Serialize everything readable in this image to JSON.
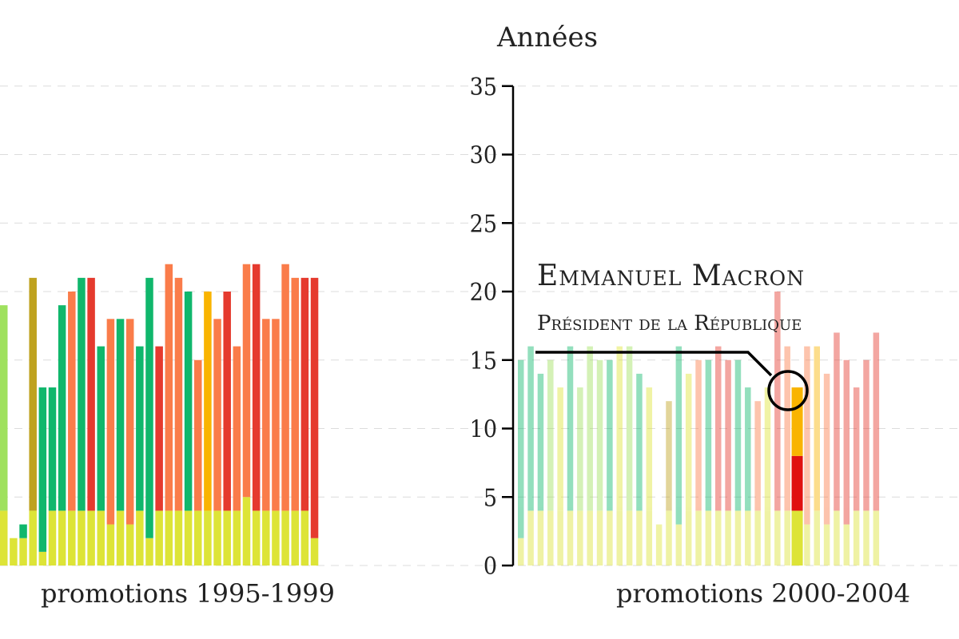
{
  "chart_data": {
    "type": "stacked-bar",
    "ylabel": "Années",
    "ylim": [
      0,
      35
    ],
    "yticks": [
      0,
      5,
      10,
      15,
      20,
      25,
      30,
      35
    ],
    "grid": true,
    "colors": {
      "yellow": "#dde437",
      "lightgreen": "#9fe15e",
      "green": "#10b76c",
      "olive": "#bfa21f",
      "orange": "#f9b400",
      "salmon": "#fa7c4a",
      "red": "#e53a2e",
      "deepred": "#e01010"
    },
    "panels": [
      {
        "label": "promotions 1995-1999",
        "opacity": 1,
        "bars": [
          [
            [
              4,
              "yellow"
            ],
            [
              15,
              "lightgreen"
            ]
          ],
          [
            [
              2,
              "yellow"
            ]
          ],
          [
            [
              2,
              "yellow"
            ],
            [
              1,
              "green"
            ]
          ],
          [
            [
              4,
              "yellow"
            ],
            [
              17,
              "olive"
            ]
          ],
          [
            [
              1,
              "yellow"
            ],
            [
              12,
              "green"
            ]
          ],
          [
            [
              4,
              "yellow"
            ],
            [
              9,
              "green"
            ]
          ],
          [
            [
              4,
              "yellow"
            ],
            [
              15,
              "green"
            ]
          ],
          [
            [
              4,
              "yellow"
            ],
            [
              16,
              "salmon"
            ]
          ],
          [
            [
              4,
              "yellow"
            ],
            [
              17,
              "green"
            ]
          ],
          [
            [
              4,
              "yellow"
            ],
            [
              17,
              "red"
            ]
          ],
          [
            [
              4,
              "yellow"
            ],
            [
              12,
              "green"
            ]
          ],
          [
            [
              3,
              "yellow"
            ],
            [
              15,
              "salmon"
            ]
          ],
          [
            [
              4,
              "yellow"
            ],
            [
              14,
              "green"
            ]
          ],
          [
            [
              3,
              "yellow"
            ],
            [
              15,
              "salmon"
            ]
          ],
          [
            [
              4,
              "yellow"
            ],
            [
              12,
              "green"
            ]
          ],
          [
            [
              2,
              "yellow"
            ],
            [
              19,
              "green"
            ]
          ],
          [
            [
              4,
              "yellow"
            ],
            [
              12,
              "red"
            ]
          ],
          [
            [
              4,
              "yellow"
            ],
            [
              18,
              "salmon"
            ]
          ],
          [
            [
              4,
              "yellow"
            ],
            [
              17,
              "salmon"
            ]
          ],
          [
            [
              4,
              "yellow"
            ],
            [
              16,
              "green"
            ]
          ],
          [
            [
              4,
              "yellow"
            ],
            [
              11,
              "salmon"
            ]
          ],
          [
            [
              4,
              "yellow"
            ],
            [
              16,
              "orange"
            ]
          ],
          [
            [
              4,
              "yellow"
            ],
            [
              14,
              "salmon"
            ]
          ],
          [
            [
              4,
              "yellow"
            ],
            [
              16,
              "red"
            ]
          ],
          [
            [
              4,
              "yellow"
            ],
            [
              12,
              "salmon"
            ]
          ],
          [
            [
              5,
              "yellow"
            ],
            [
              17,
              "salmon"
            ]
          ],
          [
            [
              4,
              "yellow"
            ],
            [
              18,
              "red"
            ]
          ],
          [
            [
              4,
              "yellow"
            ],
            [
              14,
              "salmon"
            ]
          ],
          [
            [
              4,
              "yellow"
            ],
            [
              14,
              "salmon"
            ]
          ],
          [
            [
              4,
              "yellow"
            ],
            [
              18,
              "salmon"
            ]
          ],
          [
            [
              4,
              "yellow"
            ],
            [
              17,
              "salmon"
            ]
          ],
          [
            [
              4,
              "yellow"
            ],
            [
              17,
              "red"
            ]
          ],
          [
            [
              2,
              "yellow"
            ],
            [
              19,
              "red"
            ]
          ]
        ]
      },
      {
        "label": "promotions 2000-2004",
        "opacity": 0.45,
        "bars": [
          [
            [
              2,
              "yellow"
            ],
            [
              13,
              "green"
            ]
          ],
          [
            [
              4,
              "yellow"
            ],
            [
              12,
              "green"
            ]
          ],
          [
            [
              4,
              "yellow"
            ],
            [
              10,
              "green"
            ]
          ],
          [
            [
              4,
              "yellow"
            ],
            [
              11,
              "lightgreen"
            ]
          ],
          [
            [
              4,
              "yellow"
            ],
            [
              9,
              "yellow"
            ]
          ],
          [
            [
              4,
              "yellow"
            ],
            [
              12,
              "green"
            ]
          ],
          [
            [
              4,
              "yellow"
            ],
            [
              9,
              "lightgreen"
            ]
          ],
          [
            [
              4,
              "yellow"
            ],
            [
              12,
              "lightgreen"
            ]
          ],
          [
            [
              4,
              "yellow"
            ],
            [
              11,
              "lightgreen"
            ]
          ],
          [
            [
              4,
              "yellow"
            ],
            [
              11,
              "green"
            ]
          ],
          [
            [
              4,
              "yellow"
            ],
            [
              12,
              "yellow"
            ]
          ],
          [
            [
              4,
              "yellow"
            ],
            [
              12,
              "lightgreen"
            ]
          ],
          [
            [
              4,
              "yellow"
            ],
            [
              10,
              "green"
            ]
          ],
          [
            [
              4,
              "yellow"
            ],
            [
              9,
              "yellow"
            ]
          ],
          [
            [
              3,
              "yellow"
            ]
          ],
          [
            [
              4,
              "yellow"
            ],
            [
              8,
              "olive"
            ]
          ],
          [
            [
              3,
              "yellow"
            ],
            [
              13,
              "green"
            ]
          ],
          [
            [
              4,
              "yellow"
            ],
            [
              10,
              "yellow"
            ]
          ],
          [
            [
              4,
              "yellow"
            ],
            [
              11,
              "salmon"
            ]
          ],
          [
            [
              4,
              "yellow"
            ],
            [
              11,
              "green"
            ]
          ],
          [
            [
              4,
              "yellow"
            ],
            [
              12,
              "red"
            ]
          ],
          [
            [
              4,
              "yellow"
            ],
            [
              11,
              "red"
            ]
          ],
          [
            [
              4,
              "yellow"
            ],
            [
              11,
              "green"
            ]
          ],
          [
            [
              4,
              "yellow"
            ],
            [
              9,
              "green"
            ]
          ],
          [
            [
              4,
              "yellow"
            ],
            [
              8,
              "salmon"
            ]
          ],
          [
            [
              4,
              "yellow"
            ],
            [
              9,
              "yellow"
            ]
          ],
          [
            [
              4,
              "yellow"
            ],
            [
              16,
              "red"
            ]
          ],
          [
            [
              4,
              "yellow"
            ],
            [
              12,
              "salmon"
            ]
          ],
          [
            [
              3,
              "yellow"
            ],
            [
              13,
              "red"
            ]
          ],
          [
            [
              3,
              "yellow"
            ],
            [
              13,
              "salmon"
            ]
          ],
          [
            [
              4,
              "yellow"
            ],
            [
              12,
              "orange"
            ]
          ],
          [
            [
              3,
              "yellow"
            ],
            [
              11,
              "salmon"
            ]
          ],
          [
            [
              4,
              "yellow"
            ],
            [
              13,
              "red"
            ]
          ],
          [
            [
              3,
              "yellow"
            ],
            [
              12,
              "red"
            ]
          ],
          [
            [
              4,
              "yellow"
            ],
            [
              9,
              "red"
            ]
          ],
          [
            [
              4,
              "yellow"
            ],
            [
              11,
              "red"
            ]
          ],
          [
            [
              4,
              "yellow"
            ],
            [
              13,
              "red"
            ]
          ]
        ],
        "highlight": {
          "index": 28,
          "segments": [
            [
              4,
              "yellow"
            ],
            [
              4,
              "deepred"
            ],
            [
              5,
              "orange"
            ]
          ]
        }
      }
    ],
    "annotation": {
      "name": "Emmanuel Macron",
      "role": "Président de la République"
    }
  }
}
